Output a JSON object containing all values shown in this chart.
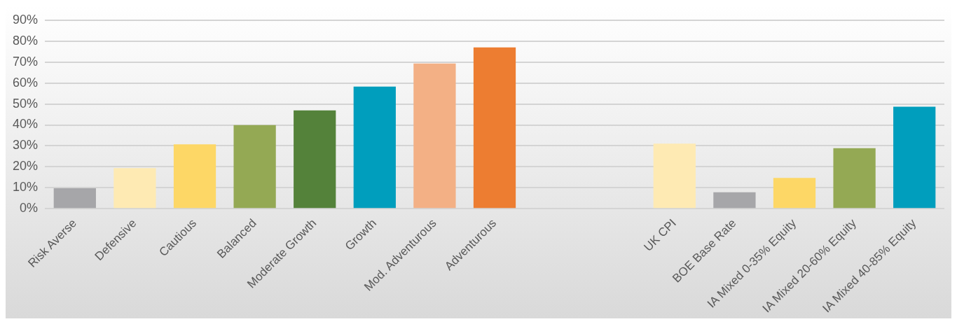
{
  "chart_data": {
    "type": "bar",
    "categories": [
      "Risk Averse",
      "Defensive",
      "Cautious",
      "Balanced",
      "Moderate Growth",
      "Growth",
      "Mod. Adventurous",
      "Adventurous",
      null,
      null,
      "UK CPI",
      "BOE Base Rate",
      "IA Mixed 0-35% Equity",
      "IA Mixed 20-60% Equity",
      "IA Mixed 40-85% Equity"
    ],
    "values": [
      9.8,
      19.4,
      30.7,
      39.9,
      46.9,
      58.3,
      69.3,
      77,
      null,
      null,
      31.1,
      7.9,
      14.7,
      28.9,
      48.7
    ],
    "colors": [
      "#a6a6a9",
      "#feeab3",
      "#fdd766",
      "#94a954",
      "#54823a",
      "#009ebd",
      "#f3b085",
      "#ed7d31",
      "#cccccc",
      "#cccccc",
      "#feeab3",
      "#a6a6a9",
      "#fdd766",
      "#94a954",
      "#009ebd"
    ],
    "ylim": [
      0,
      90
    ],
    "yticks": [
      {
        "value": 0,
        "label": "0%"
      },
      {
        "value": 10,
        "label": "10%"
      },
      {
        "value": 20,
        "label": "20%"
      },
      {
        "value": 30,
        "label": "30%"
      },
      {
        "value": 40,
        "label": "40%"
      },
      {
        "value": 50,
        "label": "50%"
      },
      {
        "value": 60,
        "label": "60%"
      },
      {
        "value": 70,
        "label": "70%"
      },
      {
        "value": 80,
        "label": "80%"
      },
      {
        "value": 90,
        "label": "90%"
      }
    ],
    "grid": "y",
    "legend": false
  }
}
